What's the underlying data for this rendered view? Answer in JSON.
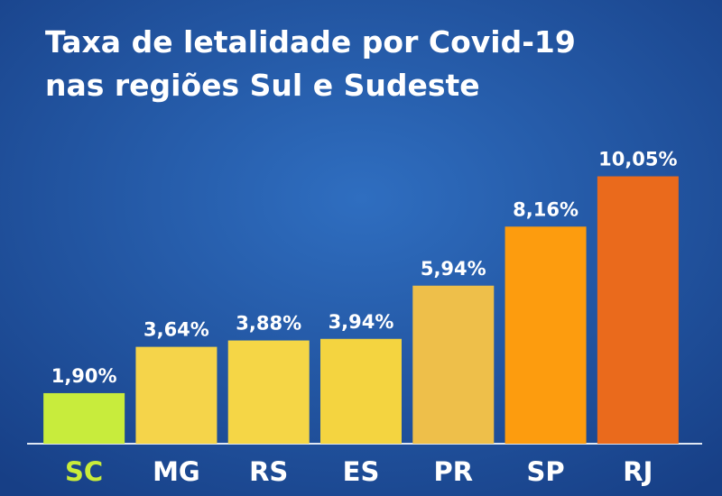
{
  "chart_data": {
    "type": "bar",
    "title": [
      "Taxa de letalidade por Covid-19",
      "nas regiões Sul e Sudeste"
    ],
    "categories": [
      "SC",
      "MG",
      "RS",
      "ES",
      "PR",
      "SP",
      "RJ"
    ],
    "values": [
      1.9,
      3.64,
      3.88,
      3.94,
      5.94,
      8.16,
      10.05
    ],
    "value_labels": [
      "1,90%",
      "3,64%",
      "3,88%",
      "3,94%",
      "5,94%",
      "8,16%",
      "10,05%"
    ],
    "colors": [
      "#c8ec3c",
      "#f5d44a",
      "#f5d646",
      "#f4d440",
      "#eebf4a",
      "#fd9c0e",
      "#ea6a1c"
    ],
    "category_label_colors": [
      "#c9ec3a",
      "#ffffff",
      "#ffffff",
      "#ffffff",
      "#ffffff",
      "#ffffff",
      "#ffffff"
    ]
  }
}
